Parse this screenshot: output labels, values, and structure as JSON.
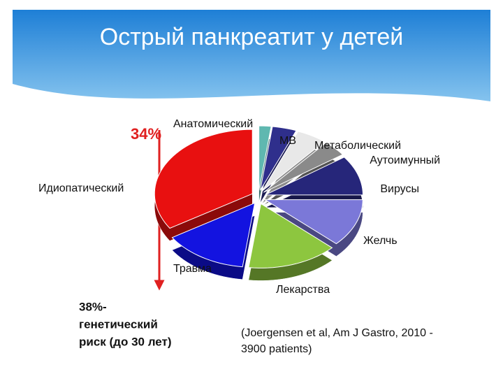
{
  "chart_data": {
    "type": "pie",
    "title": "Острый панкреатит у детей",
    "categories": [
      "Анатомический",
      "МВ",
      "Метаболический",
      "Аутоимунный",
      "Вирусы",
      "Желчь",
      "Лекарства",
      "Травма",
      "Идиопатический"
    ],
    "values": [
      2,
      4,
      5,
      4,
      10,
      12,
      15,
      14,
      34
    ],
    "colors": [
      "#5fb8b0",
      "#2f2f8c",
      "#e8e8e8",
      "#8a8a8a",
      "#26267a",
      "#7b78d8",
      "#8dc63f",
      "#1313e0",
      "#e81010"
    ],
    "annotation": "34%",
    "note": [
      "38%-",
      "генетический",
      "риск (до 30 лет)"
    ],
    "source": [
      "(Joergensen et al, Am J Gastro, 2010  -",
      "3900 patients)"
    ]
  }
}
